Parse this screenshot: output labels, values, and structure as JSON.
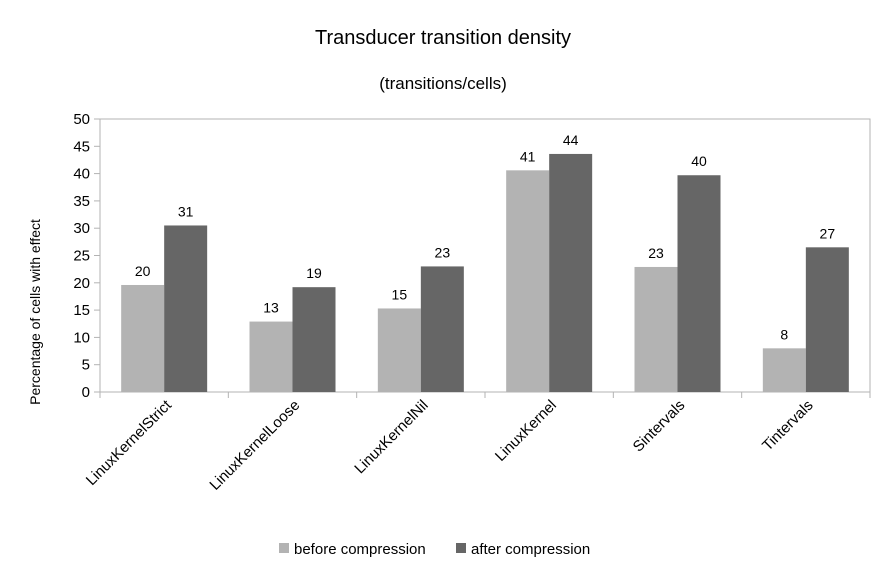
{
  "chart_data": {
    "type": "bar",
    "title": "Transducer transition density",
    "subtitle": "(transitions/cells)",
    "xlabel": "",
    "ylabel": "Percentage  of cells with effect",
    "ylim": [
      0,
      50
    ],
    "ytick_step": 5,
    "yticks": [
      "0",
      "5",
      "10",
      "15",
      "20",
      "25",
      "30",
      "35",
      "40",
      "45",
      "50"
    ],
    "grid": false,
    "legend_position": "bottom",
    "categories": [
      "LinuxKernelStrict",
      "LinuxKernelLoose",
      "LinuxKernelNil",
      "LinuxKernel",
      "Sintervals",
      "Tintervals"
    ],
    "series": [
      {
        "name": "before compression",
        "color": "#b3b3b3",
        "values": [
          19.6,
          12.9,
          15.3,
          40.6,
          22.9,
          8.0
        ],
        "labels": [
          "20",
          "13",
          "15",
          "41",
          "23",
          "8"
        ]
      },
      {
        "name": "after compression",
        "color": "#666666",
        "values": [
          30.5,
          19.2,
          23.0,
          43.6,
          39.7,
          26.5
        ],
        "labels": [
          "31",
          "19",
          "23",
          "44",
          "40",
          "27"
        ]
      }
    ]
  }
}
